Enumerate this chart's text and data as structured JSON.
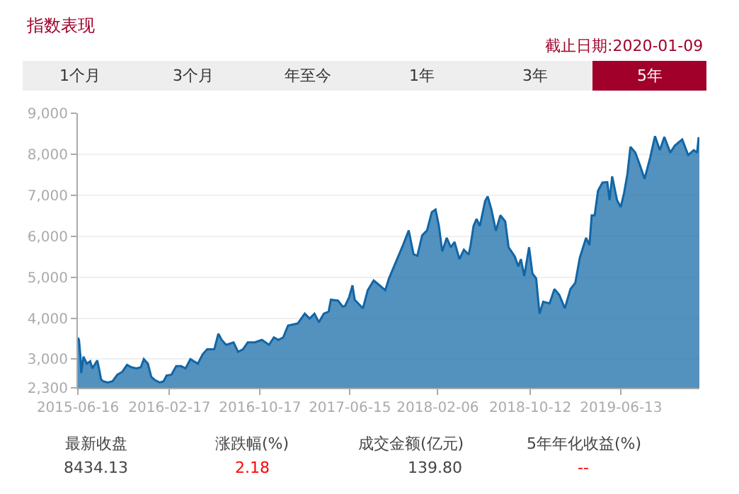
{
  "chart_data": {
    "type": "area",
    "title": "指数表现",
    "subtitle": "截止日期:2020-01-09",
    "annotations": [
      "1个月",
      "3个月",
      "年至今",
      "1年",
      "3年",
      "5年",
      "最新收盘",
      "涨跌幅(%)",
      "成交金额(亿元)",
      "5年年化收益(%)",
      "8434.13",
      "2.18",
      "139.80",
      "--"
    ],
    "x": [
      "2015-06-16",
      "2015-06-19",
      "2015-06-23",
      "2015-06-25",
      "2015-07-01",
      "2015-07-10",
      "2015-07-19",
      "2015-07-25",
      "2015-08-07",
      "2015-08-13",
      "2015-08-17",
      "2015-08-23",
      "2015-09-04",
      "2015-09-17",
      "2015-09-30",
      "2015-10-13",
      "2015-10-26",
      "2015-11-07",
      "2015-11-20",
      "2015-12-02",
      "2015-12-10",
      "2015-12-21",
      "2015-12-30",
      "2016-01-09",
      "2016-01-22",
      "2016-02-01",
      "2016-02-09",
      "2016-02-22",
      "2016-03-06",
      "2016-03-19",
      "2016-03-31",
      "2016-04-13",
      "2016-05-03",
      "2016-05-16",
      "2016-05-28",
      "2016-06-16",
      "2016-06-27",
      "2016-07-06",
      "2016-07-18",
      "2016-08-07",
      "2016-08-19",
      "2016-09-01",
      "2016-09-14",
      "2016-10-03",
      "2016-10-22",
      "2016-11-10",
      "2016-11-23",
      "2016-12-05",
      "2016-12-18",
      "2016-12-31",
      "2017-01-26",
      "2017-02-14",
      "2017-02-27",
      "2017-03-12",
      "2017-03-24",
      "2017-04-06",
      "2017-04-19",
      "2017-04-25",
      "2017-05-14",
      "2017-05-27",
      "2017-06-02",
      "2017-06-13",
      "2017-06-22",
      "2017-06-28",
      "2017-07-20",
      "2017-08-02",
      "2017-08-18",
      "2017-09-03",
      "2017-09-18",
      "2017-09-28",
      "2017-10-17",
      "2017-11-05",
      "2017-11-20",
      "2017-12-03",
      "2017-12-13",
      "2017-12-26",
      "2018-01-08",
      "2018-01-21",
      "2018-01-31",
      "2018-02-09",
      "2018-02-18",
      "2018-03-02",
      "2018-03-13",
      "2018-03-23",
      "2018-04-05",
      "2018-04-17",
      "2018-04-30",
      "2018-05-05",
      "2018-05-13",
      "2018-05-21",
      "2018-05-30",
      "2018-06-13",
      "2018-06-20",
      "2018-06-30",
      "2018-07-12",
      "2018-07-24",
      "2018-08-06",
      "2018-08-15",
      "2018-09-01",
      "2018-09-10",
      "2018-09-17",
      "2018-09-26",
      "2018-10-09",
      "2018-10-18",
      "2018-10-28",
      "2018-11-06",
      "2018-11-16",
      "2018-12-03",
      "2018-12-16",
      "2018-12-29",
      "2019-01-13",
      "2019-01-28",
      "2019-02-10",
      "2019-02-22",
      "2019-03-11",
      "2019-03-20",
      "2019-03-26",
      "2019-04-03",
      "2019-04-12",
      "2019-04-24",
      "2019-05-07",
      "2019-05-13",
      "2019-05-20",
      "2019-06-02",
      "2019-06-12",
      "2019-06-21",
      "2019-06-30",
      "2019-07-08",
      "2019-07-21",
      "2019-08-03",
      "2019-08-15",
      "2019-08-30",
      "2019-09-12",
      "2019-09-25",
      "2019-10-07",
      "2019-10-23",
      "2019-11-04",
      "2019-11-24",
      "2019-12-10",
      "2019-12-25",
      "2020-01-03",
      "2020-01-07",
      "2020-01-09"
    ],
    "series": [
      {
        "color": "#1166a6",
        "values": [
          3520,
          3470,
          3060,
          2660,
          3060,
          2890,
          2950,
          2775,
          2970,
          2720,
          2510,
          2460,
          2430,
          2460,
          2620,
          2690,
          2860,
          2800,
          2775,
          2800,
          3000,
          2890,
          2570,
          2490,
          2430,
          2460,
          2600,
          2620,
          2830,
          2830,
          2775,
          3000,
          2890,
          3120,
          3240,
          3240,
          3620,
          3470,
          3350,
          3410,
          3180,
          3240,
          3410,
          3410,
          3470,
          3350,
          3530,
          3470,
          3530,
          3820,
          3870,
          4110,
          3990,
          4110,
          3900,
          4110,
          4160,
          4450,
          4430,
          4280,
          4300,
          4510,
          4800,
          4450,
          4240,
          4680,
          4920,
          4800,
          4680,
          4970,
          5380,
          5790,
          6140,
          5560,
          5520,
          6020,
          6140,
          6590,
          6650,
          6250,
          5630,
          5960,
          5730,
          5860,
          5440,
          5670,
          5550,
          5780,
          6250,
          6420,
          6250,
          6860,
          6970,
          6650,
          6130,
          6510,
          6360,
          5730,
          5500,
          5260,
          5440,
          5030,
          5730,
          5090,
          4970,
          4110,
          4400,
          4360,
          4710,
          4570,
          4240,
          4710,
          4860,
          5470,
          5960,
          5780,
          6510,
          6510,
          7110,
          7310,
          7320,
          6880,
          7460,
          6880,
          6710,
          7060,
          7520,
          8180,
          8040,
          7720,
          7400,
          7920,
          8440,
          8100,
          8420,
          8040,
          8210,
          8360,
          7980,
          8100,
          8040,
          8410,
          8380
        ]
      }
    ],
    "xlim": [
      "2015-06-16",
      "2020-01-09"
    ],
    "xticks": [
      "2015-06-16",
      "2016-02-17",
      "2016-10-17",
      "2017-06-15",
      "2018-02-06",
      "2018-10-12",
      "2019-06-13"
    ],
    "ylim": [
      2300,
      9000
    ],
    "yticks": [
      {
        "value": 2300,
        "label": "2,300"
      },
      {
        "value": 3000,
        "label": "3,000"
      },
      {
        "value": 4000,
        "label": "4,000"
      },
      {
        "value": 5000,
        "label": "5,000"
      },
      {
        "value": 6000,
        "label": "6,000"
      },
      {
        "value": 7000,
        "label": "7,000"
      },
      {
        "value": 8000,
        "label": "8,000"
      },
      {
        "value": 9000,
        "label": "9,000"
      }
    ],
    "grid": "y",
    "marker": "none",
    "line_style": "solid"
  }
}
